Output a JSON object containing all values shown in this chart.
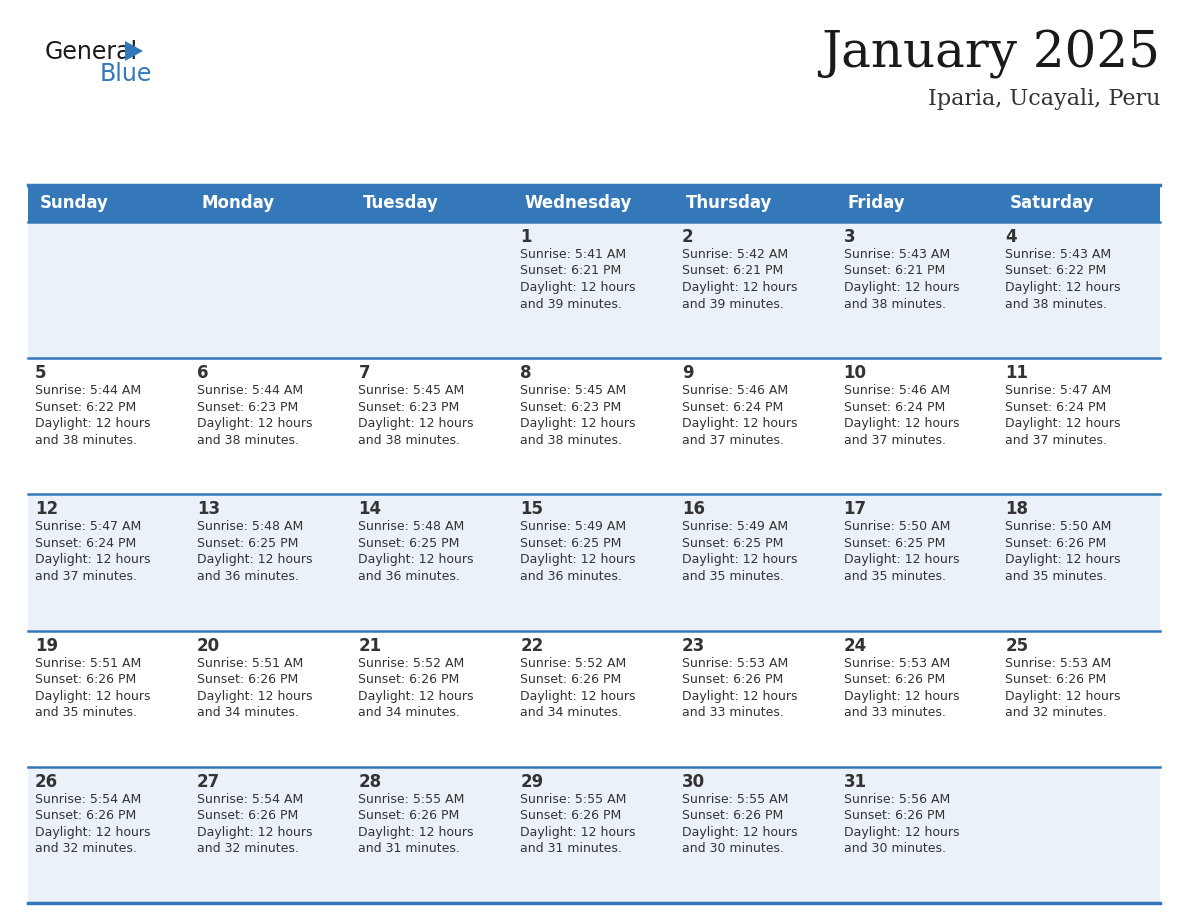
{
  "title": "January 2025",
  "subtitle": "Iparia, Ucayali, Peru",
  "header_bg": "#3578B9",
  "header_text": "#FFFFFF",
  "row_bg_light": "#EBF1F8",
  "row_bg_white": "#FFFFFF",
  "cell_text": "#333333",
  "day_num_color": "#333333",
  "separator_color": "#3578B9",
  "days_of_week": [
    "Sunday",
    "Monday",
    "Tuesday",
    "Wednesday",
    "Thursday",
    "Friday",
    "Saturday"
  ],
  "weeks": [
    [
      {
        "day": "",
        "sunrise": "",
        "sunset": "",
        "daylight_hrs": "",
        "daylight_min": ""
      },
      {
        "day": "",
        "sunrise": "",
        "sunset": "",
        "daylight_hrs": "",
        "daylight_min": ""
      },
      {
        "day": "",
        "sunrise": "",
        "sunset": "",
        "daylight_hrs": "",
        "daylight_min": ""
      },
      {
        "day": "1",
        "sunrise": "5:41 AM",
        "sunset": "6:21 PM",
        "daylight_hrs": "12 hours",
        "daylight_min": "and 39 minutes."
      },
      {
        "day": "2",
        "sunrise": "5:42 AM",
        "sunset": "6:21 PM",
        "daylight_hrs": "12 hours",
        "daylight_min": "and 39 minutes."
      },
      {
        "day": "3",
        "sunrise": "5:43 AM",
        "sunset": "6:21 PM",
        "daylight_hrs": "12 hours",
        "daylight_min": "and 38 minutes."
      },
      {
        "day": "4",
        "sunrise": "5:43 AM",
        "sunset": "6:22 PM",
        "daylight_hrs": "12 hours",
        "daylight_min": "and 38 minutes."
      }
    ],
    [
      {
        "day": "5",
        "sunrise": "5:44 AM",
        "sunset": "6:22 PM",
        "daylight_hrs": "12 hours",
        "daylight_min": "and 38 minutes."
      },
      {
        "day": "6",
        "sunrise": "5:44 AM",
        "sunset": "6:23 PM",
        "daylight_hrs": "12 hours",
        "daylight_min": "and 38 minutes."
      },
      {
        "day": "7",
        "sunrise": "5:45 AM",
        "sunset": "6:23 PM",
        "daylight_hrs": "12 hours",
        "daylight_min": "and 38 minutes."
      },
      {
        "day": "8",
        "sunrise": "5:45 AM",
        "sunset": "6:23 PM",
        "daylight_hrs": "12 hours",
        "daylight_min": "and 38 minutes."
      },
      {
        "day": "9",
        "sunrise": "5:46 AM",
        "sunset": "6:24 PM",
        "daylight_hrs": "12 hours",
        "daylight_min": "and 37 minutes."
      },
      {
        "day": "10",
        "sunrise": "5:46 AM",
        "sunset": "6:24 PM",
        "daylight_hrs": "12 hours",
        "daylight_min": "and 37 minutes."
      },
      {
        "day": "11",
        "sunrise": "5:47 AM",
        "sunset": "6:24 PM",
        "daylight_hrs": "12 hours",
        "daylight_min": "and 37 minutes."
      }
    ],
    [
      {
        "day": "12",
        "sunrise": "5:47 AM",
        "sunset": "6:24 PM",
        "daylight_hrs": "12 hours",
        "daylight_min": "and 37 minutes."
      },
      {
        "day": "13",
        "sunrise": "5:48 AM",
        "sunset": "6:25 PM",
        "daylight_hrs": "12 hours",
        "daylight_min": "and 36 minutes."
      },
      {
        "day": "14",
        "sunrise": "5:48 AM",
        "sunset": "6:25 PM",
        "daylight_hrs": "12 hours",
        "daylight_min": "and 36 minutes."
      },
      {
        "day": "15",
        "sunrise": "5:49 AM",
        "sunset": "6:25 PM",
        "daylight_hrs": "12 hours",
        "daylight_min": "and 36 minutes."
      },
      {
        "day": "16",
        "sunrise": "5:49 AM",
        "sunset": "6:25 PM",
        "daylight_hrs": "12 hours",
        "daylight_min": "and 35 minutes."
      },
      {
        "day": "17",
        "sunrise": "5:50 AM",
        "sunset": "6:25 PM",
        "daylight_hrs": "12 hours",
        "daylight_min": "and 35 minutes."
      },
      {
        "day": "18",
        "sunrise": "5:50 AM",
        "sunset": "6:26 PM",
        "daylight_hrs": "12 hours",
        "daylight_min": "and 35 minutes."
      }
    ],
    [
      {
        "day": "19",
        "sunrise": "5:51 AM",
        "sunset": "6:26 PM",
        "daylight_hrs": "12 hours",
        "daylight_min": "and 35 minutes."
      },
      {
        "day": "20",
        "sunrise": "5:51 AM",
        "sunset": "6:26 PM",
        "daylight_hrs": "12 hours",
        "daylight_min": "and 34 minutes."
      },
      {
        "day": "21",
        "sunrise": "5:52 AM",
        "sunset": "6:26 PM",
        "daylight_hrs": "12 hours",
        "daylight_min": "and 34 minutes."
      },
      {
        "day": "22",
        "sunrise": "5:52 AM",
        "sunset": "6:26 PM",
        "daylight_hrs": "12 hours",
        "daylight_min": "and 34 minutes."
      },
      {
        "day": "23",
        "sunrise": "5:53 AM",
        "sunset": "6:26 PM",
        "daylight_hrs": "12 hours",
        "daylight_min": "and 33 minutes."
      },
      {
        "day": "24",
        "sunrise": "5:53 AM",
        "sunset": "6:26 PM",
        "daylight_hrs": "12 hours",
        "daylight_min": "and 33 minutes."
      },
      {
        "day": "25",
        "sunrise": "5:53 AM",
        "sunset": "6:26 PM",
        "daylight_hrs": "12 hours",
        "daylight_min": "and 32 minutes."
      }
    ],
    [
      {
        "day": "26",
        "sunrise": "5:54 AM",
        "sunset": "6:26 PM",
        "daylight_hrs": "12 hours",
        "daylight_min": "and 32 minutes."
      },
      {
        "day": "27",
        "sunrise": "5:54 AM",
        "sunset": "6:26 PM",
        "daylight_hrs": "12 hours",
        "daylight_min": "and 32 minutes."
      },
      {
        "day": "28",
        "sunrise": "5:55 AM",
        "sunset": "6:26 PM",
        "daylight_hrs": "12 hours",
        "daylight_min": "and 31 minutes."
      },
      {
        "day": "29",
        "sunrise": "5:55 AM",
        "sunset": "6:26 PM",
        "daylight_hrs": "12 hours",
        "daylight_min": "and 31 minutes."
      },
      {
        "day": "30",
        "sunrise": "5:55 AM",
        "sunset": "6:26 PM",
        "daylight_hrs": "12 hours",
        "daylight_min": "and 30 minutes."
      },
      {
        "day": "31",
        "sunrise": "5:56 AM",
        "sunset": "6:26 PM",
        "daylight_hrs": "12 hours",
        "daylight_min": "and 30 minutes."
      },
      {
        "day": "",
        "sunrise": "",
        "sunset": "",
        "daylight_hrs": "",
        "daylight_min": ""
      }
    ]
  ],
  "title_fontsize": 36,
  "subtitle_fontsize": 16,
  "header_fontsize": 12,
  "day_num_fontsize": 12,
  "cell_fontsize": 9,
  "logo_general_fontsize": 17,
  "logo_blue_fontsize": 17
}
